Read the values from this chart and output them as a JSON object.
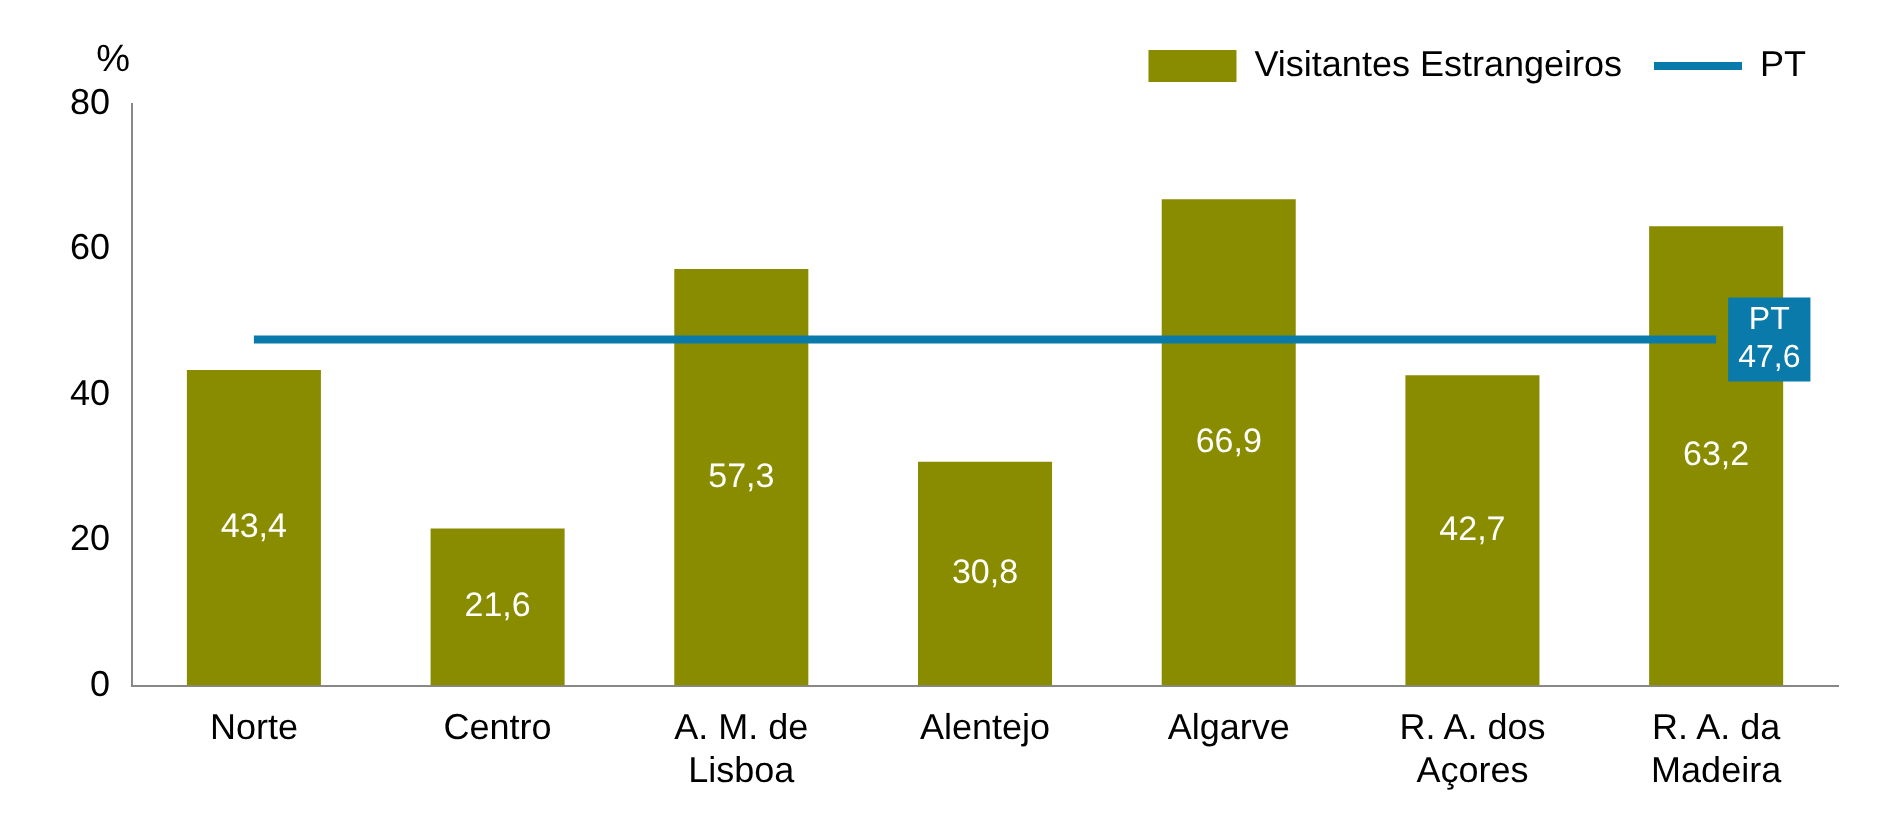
{
  "chart_data": {
    "type": "bar",
    "ylabel": "%",
    "categories": [
      "Norte",
      "Centro",
      "A. M. de Lisboa",
      "Alentejo",
      "Algarve",
      "R. A. dos Açores",
      "R. A. da Madeira"
    ],
    "series": [
      {
        "name": "Visitantes Estrangeiros",
        "color": "#8a8c00",
        "values": [
          43.4,
          21.6,
          57.3,
          30.8,
          66.9,
          42.7,
          63.2
        ],
        "value_labels": [
          "43,4",
          "21,6",
          "57,3",
          "30,8",
          "66,9",
          "42,7",
          "63,2"
        ]
      },
      {
        "name": "PT",
        "type": "line",
        "color": "#0a7aaa",
        "values": [
          47.6,
          47.6,
          47.6,
          47.6,
          47.6,
          47.6,
          47.6
        ]
      }
    ],
    "annotations": [
      {
        "text": "PT 47,6",
        "x": "R. A. da Madeira",
        "y": 47.6
      }
    ],
    "ylim": [
      0,
      80
    ],
    "yticks": [
      0,
      20,
      40,
      60,
      80
    ],
    "grid": false,
    "legend": "top right",
    "marker": "none"
  }
}
